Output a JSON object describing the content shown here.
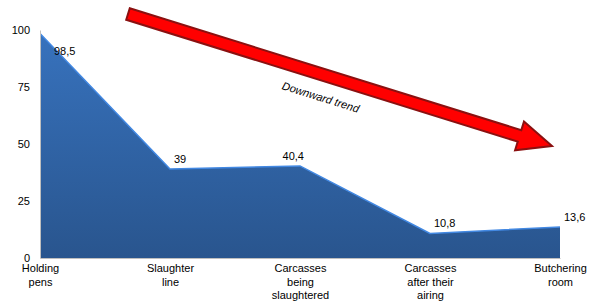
{
  "chart_data": {
    "type": "area",
    "categories": [
      "Holding pens",
      "Slaughter line",
      "Carcasses being slaughtered",
      "Carcasses after their airing",
      "Butchering room"
    ],
    "values": [
      98.5,
      39,
      40.4,
      10.8,
      13.6
    ],
    "value_labels": [
      "98,5",
      "39",
      "40,4",
      "10,8",
      "13,6"
    ],
    "color": "#2e5f9e",
    "ylim": [
      0,
      100
    ],
    "yticks": [
      0,
      25,
      50,
      75,
      100
    ],
    "grid": false,
    "data_labels": true,
    "annotation": "Downward trend"
  }
}
